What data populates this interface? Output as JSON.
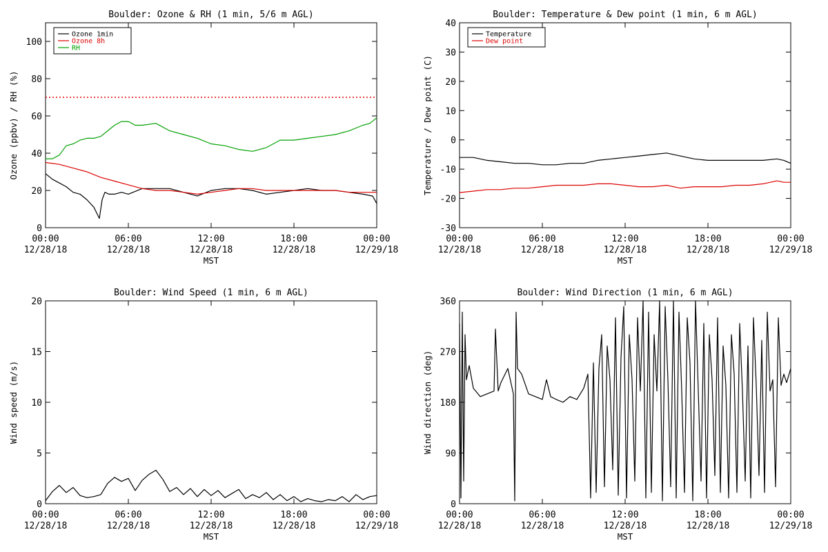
{
  "chart_data": [
    {
      "type": "line",
      "title": "Boulder: Ozone & RH (1 min, 5/6 m AGL)",
      "xlabel": "MST",
      "ylabel": "Ozone (ppbv) / RH (%)",
      "ylim": [
        0,
        110
      ],
      "yticks": [
        0,
        20,
        40,
        60,
        80,
        100
      ],
      "xlim": [
        0,
        24
      ],
      "xticks": [
        0,
        6,
        12,
        18,
        24
      ],
      "xtick_labels": [
        [
          "00:00",
          "12/28/18"
        ],
        [
          "06:00",
          "12/28/18"
        ],
        [
          "12:00",
          "12/28/18"
        ],
        [
          "18:00",
          "12/28/18"
        ],
        [
          "00:00",
          "12/29/18"
        ]
      ],
      "legend": {
        "position": "top-left",
        "entries": [
          {
            "label": "Ozone 1min",
            "color": "#000000"
          },
          {
            "label": "Ozone 8h",
            "color": "#dd0000"
          },
          {
            "label": "RH",
            "color": "#00a000"
          }
        ]
      },
      "reference_line": {
        "y": 70,
        "color": "#dd0000",
        "style": "dotted"
      },
      "series": [
        {
          "name": "Ozone 1min",
          "color": "#000000",
          "x": [
            0,
            0.5,
            1,
            1.5,
            2,
            2.5,
            3,
            3.5,
            3.9,
            4.1,
            4.3,
            4.6,
            5,
            5.5,
            6,
            7,
            8,
            9,
            10,
            11,
            12,
            13,
            14,
            15,
            16,
            17,
            18,
            19,
            20,
            21,
            22,
            23,
            23.7,
            24
          ],
          "y": [
            29,
            26,
            24,
            22,
            19,
            18,
            15,
            11,
            5,
            15,
            19,
            18,
            18,
            19,
            18,
            21,
            21,
            21,
            19,
            17,
            20,
            21,
            21,
            20,
            18,
            19,
            20,
            21,
            20,
            20,
            19,
            18,
            17,
            13
          ]
        },
        {
          "name": "Ozone 8h",
          "color": "#dd0000",
          "x": [
            0,
            1,
            2,
            3,
            4,
            5,
            6,
            7,
            8,
            9,
            10,
            11,
            12,
            13,
            14,
            15,
            16,
            17,
            18,
            19,
            20,
            21,
            22,
            23,
            24
          ],
          "y": [
            35,
            34,
            32,
            30,
            27,
            25,
            23,
            21,
            20,
            20,
            19,
            18,
            19,
            20,
            21,
            21,
            20,
            20,
            20,
            20,
            20,
            20,
            19,
            19,
            19
          ]
        },
        {
          "name": "RH",
          "color": "#00a000",
          "x": [
            0,
            0.5,
            1,
            1.5,
            2,
            2.5,
            3,
            3.5,
            4,
            4.5,
            5,
            5.5,
            6,
            6.5,
            7,
            8,
            9,
            10,
            11,
            12,
            13,
            14,
            15,
            16,
            17,
            18,
            19,
            20,
            21,
            22,
            23,
            23.5,
            24
          ],
          "y": [
            37,
            37,
            39,
            44,
            45,
            47,
            48,
            48,
            49,
            52,
            55,
            57,
            57,
            55,
            55,
            56,
            52,
            50,
            48,
            45,
            44,
            42,
            41,
            43,
            47,
            47,
            48,
            49,
            50,
            52,
            55,
            56,
            59
          ]
        }
      ]
    },
    {
      "type": "line",
      "title": "Boulder: Temperature & Dew point (1 min, 6 m AGL)",
      "xlabel": "MST",
      "ylabel": "Temperature / Dew point (C)",
      "ylim": [
        -30,
        40
      ],
      "yticks": [
        -30,
        -20,
        -10,
        0,
        10,
        20,
        30,
        40
      ],
      "xlim": [
        0,
        24
      ],
      "xticks": [
        0,
        6,
        12,
        18,
        24
      ],
      "xtick_labels": [
        [
          "00:00",
          "12/28/18"
        ],
        [
          "06:00",
          "12/28/18"
        ],
        [
          "12:00",
          "12/28/18"
        ],
        [
          "18:00",
          "12/28/18"
        ],
        [
          "00:00",
          "12/29/18"
        ]
      ],
      "legend": {
        "position": "top-left",
        "entries": [
          {
            "label": "Temperature",
            "color": "#000000"
          },
          {
            "label": "Dew point",
            "color": "#dd0000"
          }
        ]
      },
      "series": [
        {
          "name": "Temperature",
          "color": "#000000",
          "x": [
            0,
            1,
            2,
            3,
            4,
            5,
            6,
            7,
            8,
            9,
            10,
            11,
            12,
            13,
            14,
            15,
            16,
            17,
            18,
            19,
            20,
            21,
            22,
            23,
            23.5,
            24
          ],
          "y": [
            -6,
            -6,
            -7,
            -7.5,
            -8,
            -8,
            -8.5,
            -8.5,
            -8,
            -8,
            -7,
            -6.5,
            -6,
            -5.5,
            -5,
            -4.5,
            -5.5,
            -6.5,
            -7,
            -7,
            -7,
            -7,
            -7,
            -6.5,
            -7,
            -8
          ]
        },
        {
          "name": "Dew point",
          "color": "#dd0000",
          "x": [
            0,
            1,
            2,
            3,
            4,
            5,
            6,
            7,
            8,
            9,
            10,
            11,
            12,
            13,
            14,
            15,
            16,
            17,
            18,
            19,
            20,
            21,
            22,
            23,
            23.5,
            24
          ],
          "y": [
            -18,
            -17.5,
            -17,
            -17,
            -16.5,
            -16.5,
            -16,
            -15.5,
            -15.5,
            -15.5,
            -15,
            -15,
            -15.5,
            -16,
            -16,
            -15.5,
            -16.5,
            -16,
            -16,
            -16,
            -15.5,
            -15.5,
            -15,
            -14,
            -14.5,
            -14.5
          ]
        }
      ]
    },
    {
      "type": "line",
      "title": "Boulder: Wind Speed (1 min, 6 m AGL)",
      "xlabel": "MST",
      "ylabel": "Wind speed (m/s)",
      "ylim": [
        0,
        20
      ],
      "yticks": [
        0,
        5,
        10,
        15,
        20
      ],
      "xlim": [
        0,
        24
      ],
      "xticks": [
        0,
        6,
        12,
        18,
        24
      ],
      "xtick_labels": [
        [
          "00:00",
          "12/28/18"
        ],
        [
          "06:00",
          "12/28/18"
        ],
        [
          "12:00",
          "12/28/18"
        ],
        [
          "18:00",
          "12/28/18"
        ],
        [
          "00:00",
          "12/29/18"
        ]
      ],
      "series": [
        {
          "name": "",
          "color": "#000000",
          "x": [
            0,
            0.5,
            1,
            1.5,
            2,
            2.5,
            3,
            3.5,
            4,
            4.5,
            5,
            5.5,
            6,
            6.5,
            7,
            7.5,
            8,
            8.5,
            9,
            9.5,
            10,
            10.5,
            11,
            11.5,
            12,
            12.5,
            13,
            13.5,
            14,
            14.5,
            15,
            15.5,
            16,
            16.5,
            17,
            17.5,
            18,
            18.5,
            19,
            19.5,
            20,
            20.5,
            21,
            21.5,
            22,
            22.5,
            23,
            23.5,
            24
          ],
          "y": [
            0.3,
            1.2,
            1.8,
            1.1,
            1.6,
            0.8,
            0.6,
            0.7,
            0.9,
            2.0,
            2.6,
            2.2,
            2.5,
            1.3,
            2.3,
            2.9,
            3.3,
            2.4,
            1.2,
            1.6,
            0.9,
            1.5,
            0.7,
            1.4,
            0.8,
            1.3,
            0.6,
            1.0,
            1.4,
            0.5,
            0.9,
            0.6,
            1.1,
            0.4,
            0.9,
            0.3,
            0.7,
            0.2,
            0.5,
            0.3,
            0.2,
            0.4,
            0.3,
            0.7,
            0.2,
            0.9,
            0.4,
            0.7,
            0.8
          ]
        }
      ]
    },
    {
      "type": "line",
      "title": "Boulder: Wind Direction (1 min, 6 m AGL)",
      "xlabel": "MST",
      "ylabel": "Wind direction (deg)",
      "ylim": [
        0,
        360
      ],
      "yticks": [
        0,
        90,
        180,
        270,
        360
      ],
      "xlim": [
        0,
        24
      ],
      "xticks": [
        0,
        6,
        12,
        18,
        24
      ],
      "xtick_labels": [
        [
          "00:00",
          "12/28/18"
        ],
        [
          "06:00",
          "12/28/18"
        ],
        [
          "12:00",
          "12/28/18"
        ],
        [
          "18:00",
          "12/28/18"
        ],
        [
          "00:00",
          "12/29/18"
        ]
      ],
      "series": [
        {
          "name": "",
          "color": "#000000",
          "x": [
            0,
            0.1,
            0.2,
            0.3,
            0.4,
            0.5,
            0.7,
            1,
            1.5,
            2,
            2.5,
            2.6,
            2.8,
            3,
            3.5,
            3.9,
            4.0,
            4.1,
            4.2,
            4.5,
            5,
            5.5,
            6,
            6.3,
            6.6,
            7,
            7.5,
            8,
            8.5,
            9,
            9.3,
            9.5,
            9.7,
            9.9,
            10.1,
            10.3,
            10.5,
            10.7,
            10.9,
            11.1,
            11.3,
            11.5,
            11.7,
            11.9,
            12.1,
            12.3,
            12.5,
            12.7,
            12.9,
            13.1,
            13.3,
            13.5,
            13.7,
            13.9,
            14.1,
            14.3,
            14.5,
            14.7,
            14.9,
            15.1,
            15.3,
            15.5,
            15.7,
            15.9,
            16.1,
            16.3,
            16.5,
            16.7,
            16.9,
            17.1,
            17.3,
            17.5,
            17.7,
            17.9,
            18.1,
            18.3,
            18.5,
            18.7,
            18.9,
            19.1,
            19.3,
            19.5,
            19.7,
            19.9,
            20.1,
            20.3,
            20.5,
            20.7,
            20.9,
            21.1,
            21.3,
            21.5,
            21.7,
            21.9,
            22.1,
            22.3,
            22.5,
            22.7,
            22.9,
            23.1,
            23.3,
            23.5,
            23.7,
            24
          ],
          "y": [
            320,
            10,
            340,
            40,
            300,
            220,
            245,
            205,
            190,
            195,
            200,
            310,
            200,
            215,
            240,
            195,
            5,
            340,
            240,
            230,
            195,
            190,
            185,
            220,
            190,
            185,
            180,
            190,
            185,
            205,
            230,
            10,
            250,
            20,
            240,
            300,
            30,
            280,
            220,
            60,
            330,
            15,
            260,
            350,
            10,
            300,
            220,
            40,
            330,
            200,
            360,
            10,
            340,
            20,
            300,
            200,
            360,
            5,
            350,
            220,
            30,
            360,
            10,
            340,
            200,
            20,
            330,
            250,
            5,
            360,
            200,
            40,
            320,
            10,
            300,
            220,
            50,
            330,
            20,
            280,
            210,
            10,
            300,
            230,
            20,
            320,
            200,
            40,
            280,
            10,
            330,
            210,
            50,
            290,
            20,
            340,
            200,
            220,
            30,
            330,
            210,
            230,
            215,
            240
          ]
        }
      ]
    }
  ]
}
